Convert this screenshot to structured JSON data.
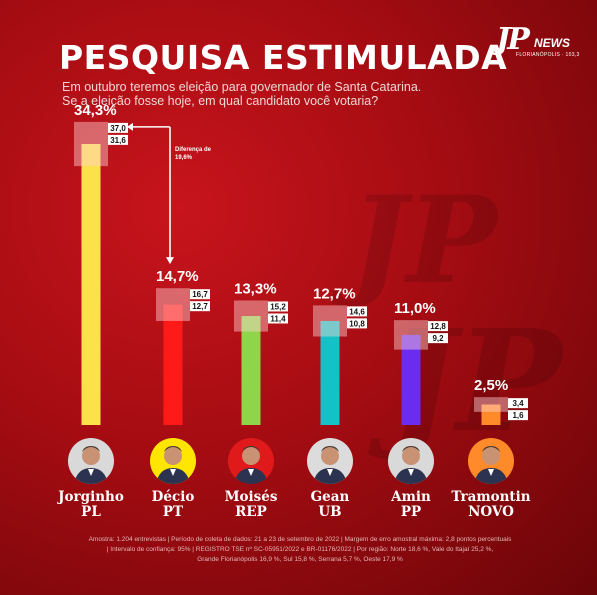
{
  "brand": {
    "mark": "JP",
    "name": "NEWS",
    "station": "FLORIANÓPOLIS · 103,3"
  },
  "chart_data": {
    "type": "bar",
    "title": "PESQUISA ESTIMULADA",
    "subtitle_lines": [
      "Em outubro teremos eleição para governador de Santa Catarina.",
      "Se a eleição fosse hoje, em qual candidato você votaria?"
    ],
    "categories": [
      "Jorginho PL",
      "Décio PT",
      "Moisés REP",
      "Gean UB",
      "Amin PP",
      "Tramontin NOVO"
    ],
    "candidates": [
      {
        "name": "Jorginho",
        "party": "PL"
      },
      {
        "name": "Décio",
        "party": "PT"
      },
      {
        "name": "Moisés",
        "party": "REP"
      },
      {
        "name": "Gean",
        "party": "UB"
      },
      {
        "name": "Amin",
        "party": "PP"
      },
      {
        "name": "Tramontin",
        "party": "NOVO"
      }
    ],
    "values": [
      34.3,
      14.7,
      13.3,
      12.7,
      11.0,
      2.5
    ],
    "labels": [
      "34,3%",
      "14,7%",
      "13,3%",
      "12,7%",
      "11,0%",
      "2,5%"
    ],
    "upper": [
      "37,0",
      "16,7",
      "15,2",
      "14,6",
      "12,8",
      "3,4"
    ],
    "lower": [
      "31,6",
      "12,7",
      "11,4",
      "10,8",
      "9,2",
      "1,6"
    ],
    "upper_values": [
      37.0,
      16.7,
      15.2,
      14.6,
      12.8,
      3.4
    ],
    "lower_values": [
      31.6,
      12.7,
      11.4,
      10.8,
      9.2,
      1.6
    ],
    "colors": [
      "#fde14a",
      "#ff1a1a",
      "#8ed54a",
      "#12c2c6",
      "#6b2cf0",
      "#ff8a2a"
    ],
    "avatar_colors": [
      "#d9d9d9",
      "#ffe600",
      "#e01a1a",
      "#dcdcdc",
      "#d9d9d9",
      "#ff8a2a"
    ],
    "annotation": {
      "line1": "Diferença de",
      "line2": "19,6%"
    },
    "ylim": [
      0,
      34.3
    ],
    "footer_lines": [
      "Amostra: 1.204 entrevistas | Período de coleta de dados: 21 a 23 de setembro de 2022 | Margem de erro amostral máxima: 2,8 pontos percentuais",
      "| Intervalo de confiança: 95% | REGISTRO TSE nº SC-05951/2022 e BR-01176/2022 | Por região: Norte 18,6 %, Vale do Itajaí 25,2 %,",
      "Grande Florianópolis 16,9 %, Sul 15,8 %, Serrana 5,7 %, Oeste 17,9 %"
    ]
  }
}
